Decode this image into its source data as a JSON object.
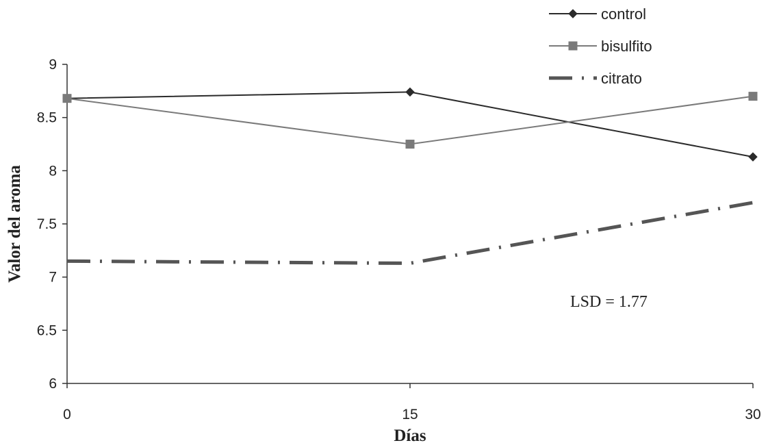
{
  "chart_data": {
    "type": "line",
    "x": [
      0,
      15,
      30
    ],
    "x_tick_labels": [
      "0",
      "15",
      "30"
    ],
    "y_tick_labels": [
      "6",
      "6.5",
      "7",
      "7.5",
      "8",
      "8.5",
      "9"
    ],
    "xlabel": "Días",
    "ylabel": "Valor del aroma",
    "xlim": [
      0,
      30
    ],
    "ylim": [
      6,
      9
    ],
    "grid": false,
    "legend_position": "top-right",
    "annotation": "LSD = 1.77",
    "series": [
      {
        "name": "control",
        "values": [
          8.68,
          8.74,
          8.13
        ],
        "color": "#2b2b2b",
        "line_style": "solid",
        "marker": "diamond"
      },
      {
        "name": "bisulfito",
        "values": [
          8.68,
          8.25,
          8.7
        ],
        "color": "#7a7a7a",
        "line_style": "solid",
        "marker": "square"
      },
      {
        "name": "citrato",
        "values": [
          7.15,
          7.13,
          7.7
        ],
        "color": "#555555",
        "line_style": "dash-dot",
        "marker": "none"
      }
    ]
  }
}
